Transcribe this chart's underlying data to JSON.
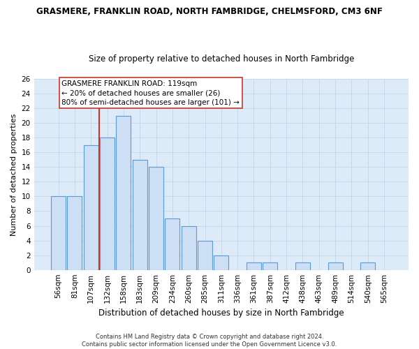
{
  "title_line1": "GRASMERE, FRANKLIN ROAD, NORTH FAMBRIDGE, CHELMSFORD, CM3 6NF",
  "title_line2": "Size of property relative to detached houses in North Fambridge",
  "xlabel": "Distribution of detached houses by size in North Fambridge",
  "ylabel": "Number of detached properties",
  "categories": [
    "56sqm",
    "81sqm",
    "107sqm",
    "132sqm",
    "158sqm",
    "183sqm",
    "209sqm",
    "234sqm",
    "260sqm",
    "285sqm",
    "311sqm",
    "336sqm",
    "361sqm",
    "387sqm",
    "412sqm",
    "438sqm",
    "463sqm",
    "489sqm",
    "514sqm",
    "540sqm",
    "565sqm"
  ],
  "values": [
    10,
    10,
    17,
    18,
    21,
    15,
    14,
    7,
    6,
    4,
    2,
    0,
    1,
    1,
    0,
    1,
    0,
    1,
    0,
    1,
    0
  ],
  "bar_color": "#ccdff5",
  "bar_edge_color": "#5b9bd5",
  "marker_label": "GRASMERE FRANKLIN ROAD: 119sqm\n← 20% of detached houses are smaller (26)\n80% of semi-detached houses are larger (101) →",
  "vline_color": "#c0392b",
  "vline_x": 2.5,
  "ylim": [
    0,
    26
  ],
  "yticks": [
    0,
    2,
    4,
    6,
    8,
    10,
    12,
    14,
    16,
    18,
    20,
    22,
    24,
    26
  ],
  "grid_color": "#c8d8ea",
  "background_color": "#ddeaf7",
  "footer_line1": "Contains HM Land Registry data © Crown copyright and database right 2024.",
  "footer_line2": "Contains public sector information licensed under the Open Government Licence v3.0.",
  "annotation_box_color": "#ffffff",
  "annotation_border_color": "#c0392b",
  "title1_fontsize": 8.5,
  "title2_fontsize": 8.5,
  "ylabel_fontsize": 8,
  "xlabel_fontsize": 8.5,
  "tick_fontsize": 7.5,
  "annotation_fontsize": 7.5,
  "footer_fontsize": 6
}
